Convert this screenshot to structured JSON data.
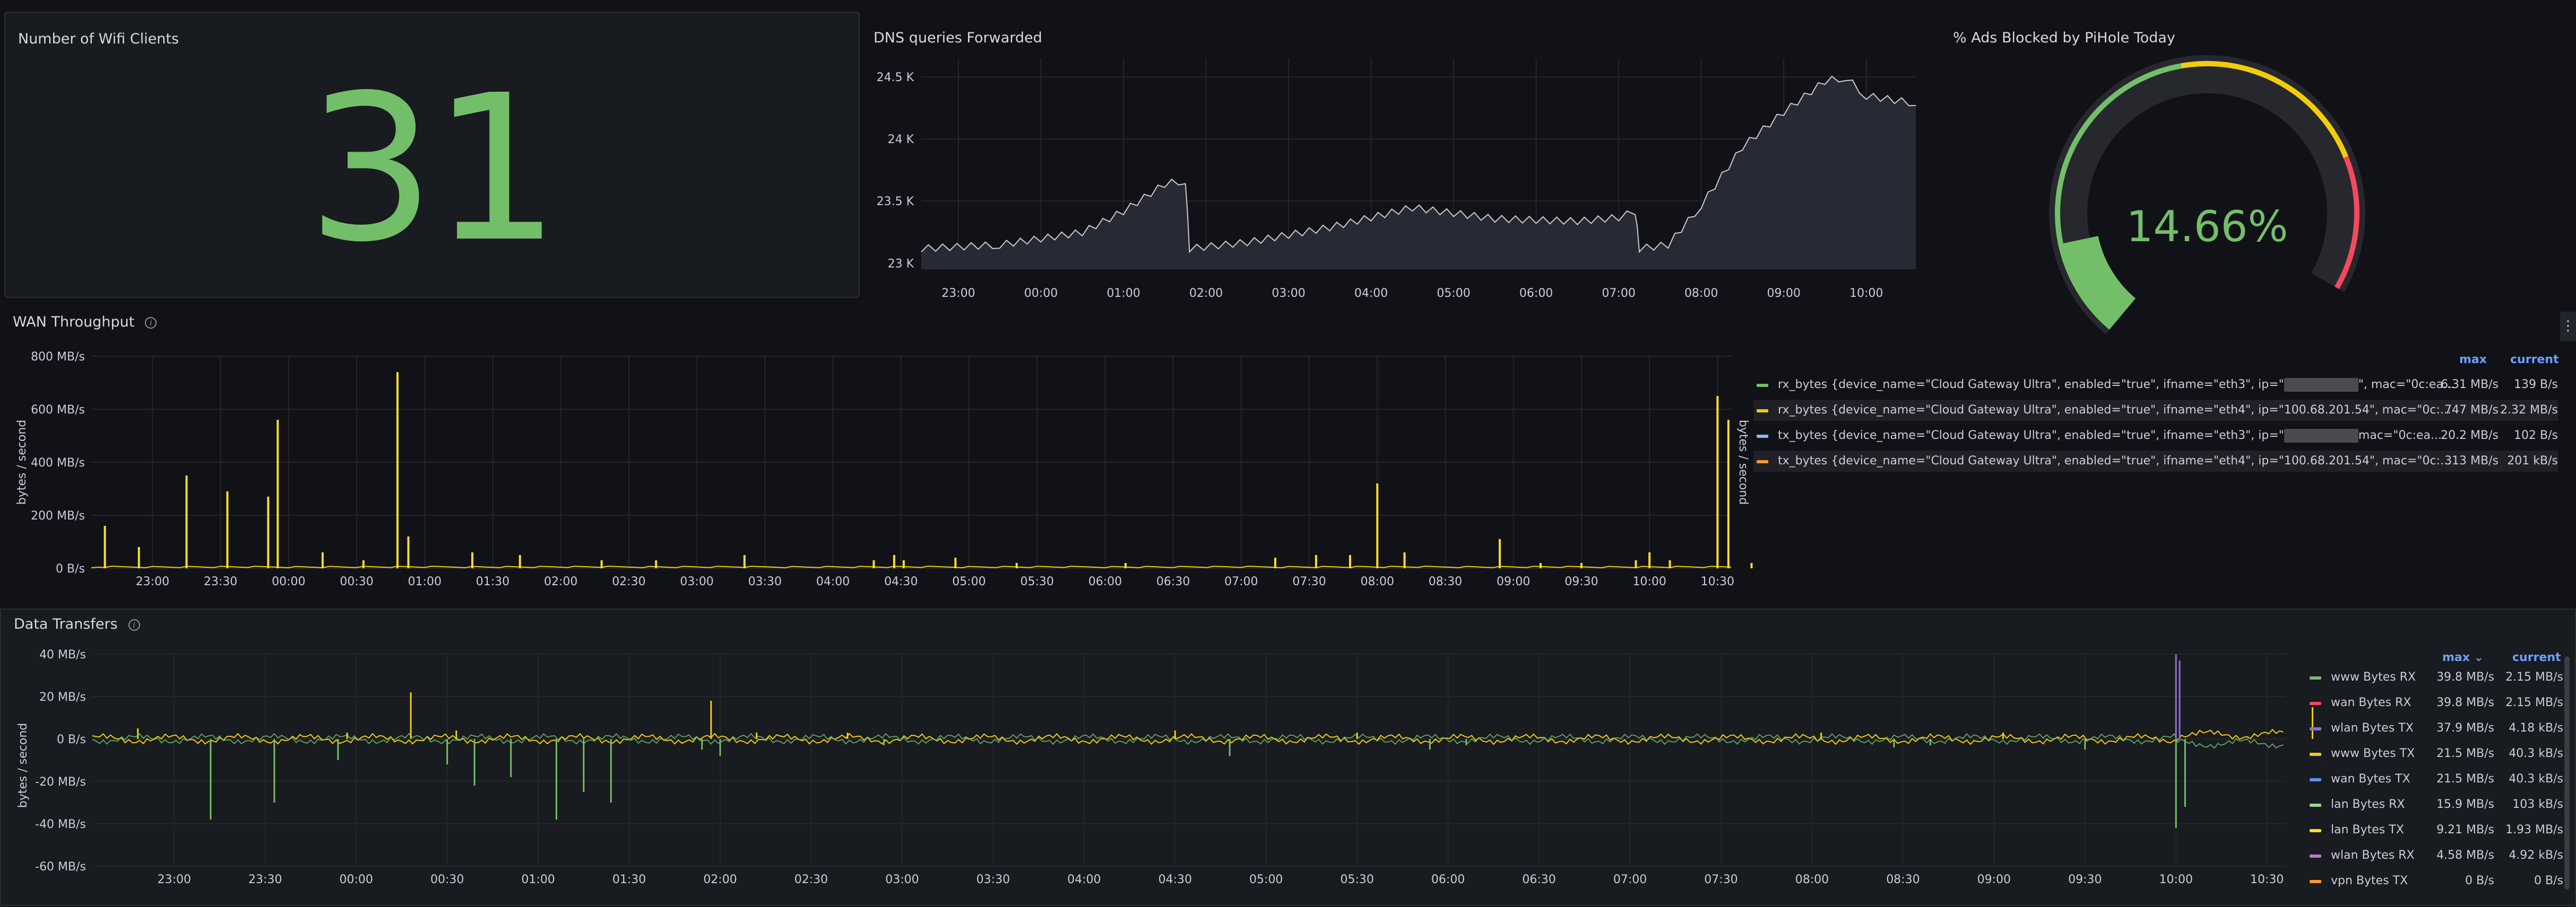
{
  "wifi": {
    "title": "Number of Wifi Clients",
    "value": "31"
  },
  "dns": {
    "title": "DNS queries Forwarded",
    "chart_data": {
      "type": "area",
      "x_ticks": [
        "23:00",
        "00:00",
        "01:00",
        "02:00",
        "03:00",
        "04:00",
        "05:00",
        "06:00",
        "07:00",
        "08:00",
        "09:00",
        "10:00"
      ],
      "y_ticks": [
        "23 K",
        "23.5 K",
        "24 K",
        "24.5 K"
      ],
      "y_tick_values": [
        23000,
        23500,
        24000,
        24500
      ],
      "ylim": [
        22950,
        24650
      ],
      "x_range_hours": [
        22.55,
        34.6
      ],
      "series": [
        {
          "color": "#cccccc",
          "points": [
            [
              22.55,
              23100
            ],
            [
              23.5,
              23130
            ],
            [
              24.5,
              23230
            ],
            [
              25.0,
              23400
            ],
            [
              25.5,
              23620
            ],
            [
              25.75,
              23650
            ],
            [
              25.8,
              23100
            ],
            [
              26.5,
              23150
            ],
            [
              27.5,
              23270
            ],
            [
              28.5,
              23430
            ],
            [
              29.5,
              23340
            ],
            [
              30.5,
              23320
            ],
            [
              31.0,
              23350
            ],
            [
              31.2,
              23400
            ],
            [
              31.25,
              23100
            ],
            [
              31.6,
              23130
            ],
            [
              32.0,
              23450
            ],
            [
              32.5,
              23920
            ],
            [
              33.0,
              24200
            ],
            [
              33.5,
              24450
            ],
            [
              33.75,
              24480
            ],
            [
              34.0,
              24330
            ],
            [
              34.6,
              24270
            ]
          ]
        }
      ]
    }
  },
  "ads": {
    "title": "% Ads Blocked by PiHole Today",
    "chart_data": {
      "type": "gauge",
      "value": 14.66,
      "display": "14.66%",
      "min": 0,
      "max": 100,
      "thresholds": [
        {
          "color": "#73bf69",
          "from": 0
        },
        {
          "color": "#f2cc0c",
          "from": 50
        },
        {
          "color": "#f2495c",
          "from": 80
        }
      ]
    }
  },
  "wan": {
    "title": "WAN Throughput",
    "ylabel": "bytes / second",
    "ylabel_right": "bytes / second",
    "legend_head": {
      "max": "max",
      "current": "current"
    },
    "chart_data": {
      "type": "line",
      "x_ticks": [
        "23:00",
        "23:30",
        "00:00",
        "00:30",
        "01:00",
        "01:30",
        "02:00",
        "02:30",
        "03:00",
        "03:30",
        "04:00",
        "04:30",
        "05:00",
        "05:30",
        "06:00",
        "06:30",
        "07:00",
        "07:30",
        "08:00",
        "08:30",
        "09:00",
        "09:30",
        "10:00",
        "10:30"
      ],
      "y_ticks": [
        "0 B/s",
        "200 MB/s",
        "400 MB/s",
        "600 MB/s",
        "800 MB/s"
      ],
      "y_tick_values": [
        0,
        200,
        400,
        600,
        800
      ],
      "ylim": [
        0,
        800
      ],
      "x_range_hours": [
        22.55,
        34.6
      ],
      "spikes": [
        [
          22.65,
          160
        ],
        [
          22.9,
          80
        ],
        [
          23.25,
          350
        ],
        [
          23.55,
          290
        ],
        [
          23.85,
          270
        ],
        [
          23.92,
          560
        ],
        [
          24.25,
          60
        ],
        [
          24.55,
          30
        ],
        [
          24.8,
          740
        ],
        [
          24.88,
          120
        ],
        [
          25.35,
          60
        ],
        [
          25.7,
          50
        ],
        [
          26.3,
          30
        ],
        [
          26.7,
          30
        ],
        [
          27.35,
          50
        ],
        [
          28.3,
          30
        ],
        [
          28.45,
          50
        ],
        [
          28.52,
          30
        ],
        [
          28.9,
          40
        ],
        [
          29.35,
          20
        ],
        [
          30.15,
          20
        ],
        [
          31.25,
          40
        ],
        [
          31.55,
          50
        ],
        [
          31.8,
          50
        ],
        [
          32.0,
          320
        ],
        [
          32.2,
          60
        ],
        [
          34.15,
          30
        ],
        [
          34.75,
          20
        ],
        [
          32.9,
          110
        ],
        [
          33.2,
          20
        ],
        [
          33.5,
          20
        ],
        [
          33.9,
          30
        ],
        [
          34.0,
          60
        ],
        [
          34.5,
          650
        ],
        [
          34.58,
          560
        ]
      ]
    },
    "legend": [
      {
        "color": "#73bf69",
        "label": "rx_bytes {device_name=\"Cloud Gateway Ultra\", enabled=\"true\", ifname=\"eth3\", ip=\"",
        "label_end": "\", mac=\"0c:ea...",
        "redacted": true,
        "max": "6.31 MB/s",
        "current": "139 B/s"
      },
      {
        "color": "#f2cc0c",
        "label": "rx_bytes {device_name=\"Cloud Gateway Ultra\", enabled=\"true\", ifname=\"eth4\", ip=\"100.68.201.54\", mac=\"0c:...",
        "max": "747 MB/s",
        "current": "2.32 MB/s"
      },
      {
        "color": "#8ab8ff",
        "label": "tx_bytes {device_name=\"Cloud Gateway Ultra\", enabled=\"true\", ifname=\"eth3\", ip=\"",
        "label_end": "mac=\"0c:ea...",
        "redacted": true,
        "max": "20.2 MB/s",
        "current": "102 B/s"
      },
      {
        "color": "#ff9830",
        "label": "tx_bytes {device_name=\"Cloud Gateway Ultra\", enabled=\"true\", ifname=\"eth4\", ip=\"100.68.201.54\", mac=\"0c:...",
        "max": "313 MB/s",
        "current": "201 kB/s"
      }
    ]
  },
  "transfers": {
    "title": "Data Transfers",
    "ylabel": "bytes / second",
    "legend_head": {
      "max": "max ⌄",
      "current": "current"
    },
    "chart_data": {
      "type": "line",
      "x_ticks": [
        "23:00",
        "23:30",
        "00:00",
        "00:30",
        "01:00",
        "01:30",
        "02:00",
        "02:30",
        "03:00",
        "03:30",
        "04:00",
        "04:30",
        "05:00",
        "05:30",
        "06:00",
        "06:30",
        "07:00",
        "07:30",
        "08:00",
        "08:30",
        "09:00",
        "09:30",
        "10:00",
        "10:30"
      ],
      "y_ticks": [
        "-60 MB/s",
        "-40 MB/s",
        "-20 MB/s",
        "0 B/s",
        "20 MB/s",
        "40 MB/s"
      ],
      "y_tick_values": [
        -60,
        -40,
        -20,
        0,
        20,
        40
      ],
      "ylim": [
        -60,
        40
      ],
      "x_range_hours": [
        22.55,
        34.6
      ],
      "pos_spikes": [
        [
          22.8,
          5
        ],
        [
          23.95,
          3
        ],
        [
          24.3,
          22
        ],
        [
          24.55,
          4
        ],
        [
          25.95,
          18
        ],
        [
          26.2,
          3
        ],
        [
          26.7,
          3
        ],
        [
          28.5,
          4
        ],
        [
          29.5,
          3
        ],
        [
          32.05,
          3
        ],
        [
          33.05,
          3
        ],
        [
          34.0,
          40
        ],
        [
          34.02,
          37
        ],
        [
          34.75,
          15
        ]
      ],
      "neg_spikes": [
        [
          23.2,
          -38
        ],
        [
          23.55,
          -30
        ],
        [
          23.9,
          -10
        ],
        [
          24.5,
          -12
        ],
        [
          24.65,
          -22
        ],
        [
          24.85,
          -18
        ],
        [
          25.1,
          -38
        ],
        [
          25.25,
          -25
        ],
        [
          25.4,
          -30
        ],
        [
          25.9,
          -5
        ],
        [
          26.0,
          -8
        ],
        [
          26.9,
          -3
        ],
        [
          28.8,
          -8
        ],
        [
          29.9,
          -5
        ],
        [
          30.1,
          -3
        ],
        [
          32.45,
          -4
        ],
        [
          32.65,
          -3
        ],
        [
          33.5,
          -5
        ],
        [
          34.0,
          -42
        ],
        [
          34.05,
          -32
        ]
      ]
    },
    "legend": [
      {
        "color": "#73bf69",
        "label": "www Bytes RX",
        "max": "39.8 MB/s",
        "current": "2.15 MB/s"
      },
      {
        "color": "#f2495c",
        "label": "wan Bytes RX",
        "max": "39.8 MB/s",
        "current": "2.15 MB/s"
      },
      {
        "color": "#8f6ed5",
        "label": "wlan Bytes TX",
        "max": "37.9 MB/s",
        "current": "4.18 kB/s"
      },
      {
        "color": "#f2cc0c",
        "label": "www Bytes TX",
        "max": "21.5 MB/s",
        "current": "40.3 kB/s"
      },
      {
        "color": "#5794f2",
        "label": "wan Bytes TX",
        "max": "21.5 MB/s",
        "current": "40.3 kB/s"
      },
      {
        "color": "#96d98d",
        "label": "lan Bytes RX",
        "max": "15.9 MB/s",
        "current": "103 kB/s"
      },
      {
        "color": "#fade2a",
        "label": "lan Bytes TX",
        "max": "9.21 MB/s",
        "current": "1.93 MB/s"
      },
      {
        "color": "#b877d9",
        "label": "wlan Bytes RX",
        "max": "4.58 MB/s",
        "current": "4.92 kB/s"
      },
      {
        "color": "#ff9830",
        "label": "vpn Bytes TX",
        "max": "0 B/s",
        "current": "0 B/s"
      }
    ]
  }
}
